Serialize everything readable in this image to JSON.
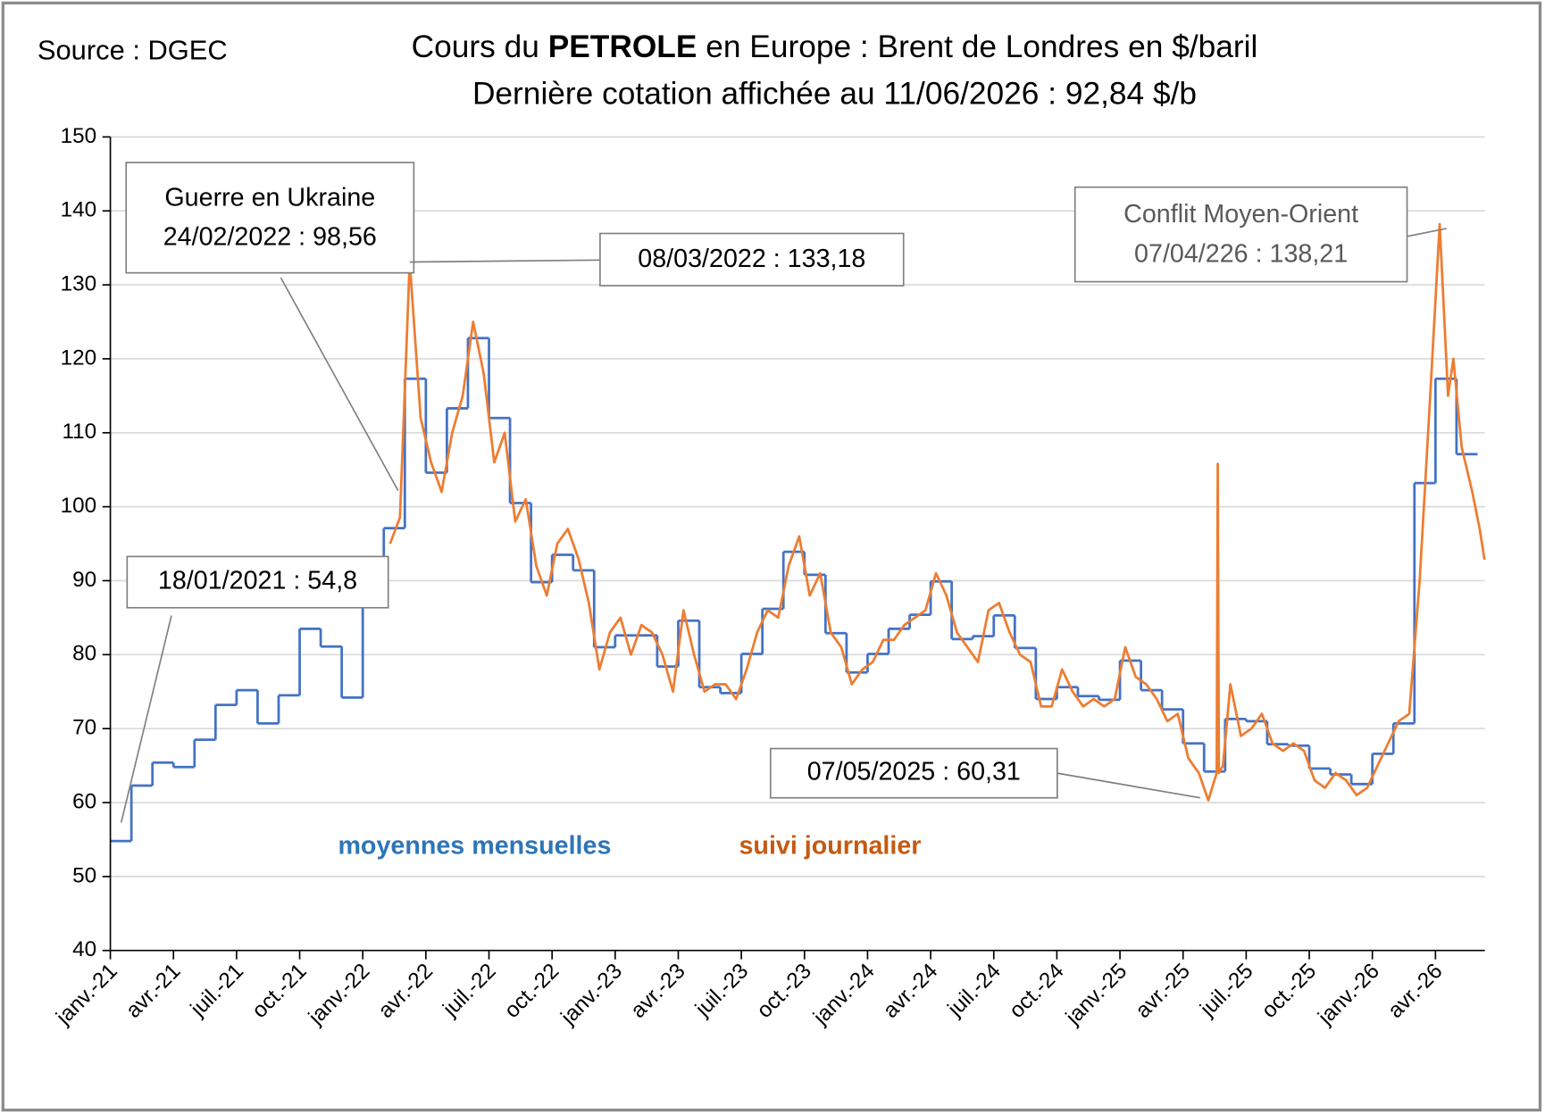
{
  "chart_data": {
    "type": "line",
    "source": "Source : DGEC",
    "title": {
      "before": "Cours du",
      "bold": "PETROLE",
      "after": "en Europe : Brent de Londres en $/baril"
    },
    "subtitle": "Dernière cotation affichée au 11/06/2026 : 92,84 $/b",
    "xlim": [
      0,
      65.35
    ],
    "xticks": [
      {
        "value": 0,
        "label": "janv.-21"
      },
      {
        "value": 3,
        "label": "avr.-21"
      },
      {
        "value": 6,
        "label": "juil.-21"
      },
      {
        "value": 9,
        "label": "oct.-21"
      },
      {
        "value": 12,
        "label": "janv.-22"
      },
      {
        "value": 15,
        "label": "avr.-22"
      },
      {
        "value": 18,
        "label": "juil.-22"
      },
      {
        "value": 21,
        "label": "oct.-22"
      },
      {
        "value": 24,
        "label": "janv.-23"
      },
      {
        "value": 27,
        "label": "avr.-23"
      },
      {
        "value": 30,
        "label": "juil.-23"
      },
      {
        "value": 33,
        "label": "oct.-23"
      },
      {
        "value": 36,
        "label": "janv.-24"
      },
      {
        "value": 39,
        "label": "avr.-24"
      },
      {
        "value": 42,
        "label": "juil.-24"
      },
      {
        "value": 45,
        "label": "oct.-24"
      },
      {
        "value": 48,
        "label": "janv.-25"
      },
      {
        "value": 51,
        "label": "avr.-25"
      },
      {
        "value": 54,
        "label": "juil.-25"
      },
      {
        "value": 57,
        "label": "oct.-25"
      },
      {
        "value": 60,
        "label": "janv.-26"
      },
      {
        "value": 63,
        "label": "avr.-26"
      }
    ],
    "ylim": [
      40,
      150
    ],
    "yticks": [
      40,
      50,
      60,
      70,
      80,
      90,
      100,
      110,
      120,
      130,
      140,
      150
    ],
    "grid": true,
    "series": [
      {
        "name": "moyennes mensuelles",
        "color": "#4472c4",
        "step": "post",
        "x": [
          0,
          1,
          2,
          3,
          4,
          5,
          6,
          7,
          8,
          9,
          10,
          11,
          12,
          13,
          14,
          15,
          16,
          17,
          18,
          19,
          20,
          21,
          22,
          23,
          24,
          25,
          26,
          27,
          28,
          29,
          30,
          31,
          32,
          33,
          34,
          35,
          36,
          37,
          38,
          39,
          40,
          41,
          42,
          43,
          44,
          45,
          46,
          47,
          48,
          49,
          50,
          51,
          52,
          53,
          54,
          55,
          56,
          57,
          58,
          59,
          60,
          61,
          62,
          63,
          64
        ],
        "values": [
          54.8,
          62.3,
          65.4,
          64.8,
          68.5,
          73.2,
          75.2,
          70.7,
          74.5,
          83.5,
          81.1,
          74.2,
          86.5,
          97.1,
          117.3,
          104.6,
          113.3,
          122.8,
          112.0,
          100.5,
          89.8,
          93.5,
          91.4,
          81.0,
          82.6,
          82.6,
          78.4,
          84.6,
          75.6,
          74.8,
          80.1,
          86.2,
          93.9,
          90.8,
          82.9,
          77.6,
          80.1,
          83.5,
          85.4,
          89.9,
          82.1,
          82.5,
          85.3,
          80.9,
          74.0,
          75.6,
          74.4,
          73.9,
          79.2,
          75.2,
          72.6,
          68.0,
          64.2,
          71.3,
          71.0,
          67.9,
          67.7,
          64.6,
          63.8,
          62.5,
          66.6,
          70.7,
          103.2,
          117.3,
          107.1
        ]
      },
      {
        "name": "suivi journalier",
        "color": "#ed7d31",
        "x": [
          13.3,
          13.77,
          14.23,
          14.75,
          15.25,
          15.75,
          16.25,
          16.75,
          17.25,
          17.75,
          18.25,
          18.75,
          19.25,
          19.75,
          20.25,
          20.75,
          21.25,
          21.75,
          22.25,
          22.75,
          23.25,
          23.75,
          24.25,
          24.75,
          25.25,
          25.75,
          26.25,
          26.75,
          27.25,
          27.75,
          28.25,
          28.75,
          29.25,
          29.75,
          30.25,
          30.75,
          31.25,
          31.75,
          32.25,
          32.75,
          33.25,
          33.75,
          34.25,
          34.75,
          35.25,
          35.75,
          36.25,
          36.75,
          37.25,
          37.75,
          38.25,
          38.75,
          39.25,
          39.75,
          40.25,
          40.75,
          41.25,
          41.75,
          42.25,
          42.75,
          43.25,
          43.75,
          44.25,
          44.75,
          45.25,
          45.75,
          46.25,
          46.75,
          47.25,
          47.75,
          48.25,
          48.75,
          49.25,
          49.75,
          50.25,
          50.75,
          51.25,
          51.75,
          52.2,
          52.6,
          52.65,
          52.7,
          52.9,
          53.25,
          53.75,
          54.25,
          54.75,
          55.25,
          55.75,
          56.25,
          56.75,
          57.25,
          57.75,
          58.25,
          58.75,
          59.25,
          59.75,
          60.25,
          60.75,
          61.25,
          61.75,
          62.25,
          62.75,
          63.2,
          63.6,
          63.85,
          64.25,
          64.75,
          65.1,
          65.33
        ],
        "values": [
          95,
          98.56,
          133.18,
          112,
          106,
          102,
          110,
          115,
          125,
          118,
          106,
          110,
          98,
          101,
          92,
          88,
          95,
          97,
          93,
          87,
          78,
          83,
          85,
          80,
          84,
          83,
          80,
          75,
          86,
          80,
          75,
          76,
          76,
          74,
          78,
          83,
          86,
          85,
          92,
          96,
          88,
          91,
          83,
          81,
          76,
          78,
          79,
          82,
          82,
          84,
          85,
          86,
          91,
          88,
          83,
          81,
          79,
          86,
          87,
          83,
          80,
          79,
          73,
          73,
          78,
          75,
          73,
          74,
          73,
          74,
          81,
          77,
          76,
          74,
          71,
          72,
          66,
          64,
          60.31,
          64,
          105.8,
          64,
          65,
          76,
          69,
          70,
          72,
          68,
          67,
          68,
          67,
          63,
          62,
          64,
          63,
          61,
          62,
          65,
          68,
          71,
          72,
          90,
          115,
          138.21,
          115,
          120,
          108,
          102,
          97,
          92.84
        ]
      }
    ],
    "annotations": [
      {
        "lines": [
          "Guerre en Ukraine",
          "24/02/2022 : 98,56"
        ]
      },
      {
        "lines": [
          "08/03/2022 : 133,18"
        ]
      },
      {
        "lines": [
          "Conflit Moyen-Orient",
          "07/04/226 : 138,21"
        ]
      },
      {
        "lines": [
          "07/05/2025 : 60,31"
        ]
      },
      {
        "lines": [
          "18/01/2021 : 54,8"
        ]
      }
    ]
  }
}
